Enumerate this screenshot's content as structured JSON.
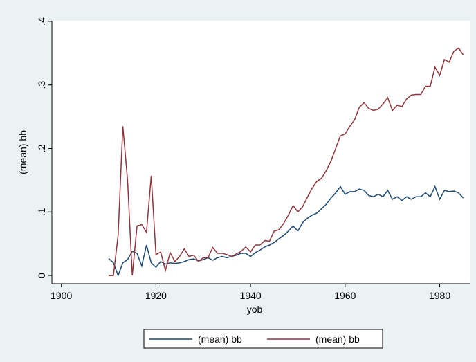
{
  "chart_data": {
    "type": "line",
    "x_label": "yob",
    "y_label": "(mean) bb",
    "x": [
      1910,
      1911,
      1912,
      1913,
      1914,
      1915,
      1916,
      1917,
      1918,
      1919,
      1920,
      1921,
      1922,
      1923,
      1924,
      1925,
      1926,
      1927,
      1928,
      1929,
      1930,
      1931,
      1932,
      1933,
      1934,
      1935,
      1936,
      1937,
      1938,
      1939,
      1940,
      1941,
      1942,
      1943,
      1944,
      1945,
      1946,
      1947,
      1948,
      1949,
      1950,
      1951,
      1952,
      1953,
      1954,
      1955,
      1956,
      1957,
      1958,
      1959,
      1960,
      1961,
      1962,
      1963,
      1964,
      1965,
      1966,
      1967,
      1968,
      1969,
      1970,
      1971,
      1972,
      1973,
      1974,
      1975,
      1976,
      1977,
      1978,
      1979,
      1980,
      1981,
      1982,
      1983,
      1984,
      1985
    ],
    "series": [
      {
        "name": "(mean) bb",
        "color": "#1a476f",
        "values": [
          0.027,
          0.02,
          0,
          0.02,
          0.025,
          0.038,
          0.035,
          0.015,
          0.048,
          0.02,
          0.013,
          0.022,
          0.018,
          0.02,
          0.019,
          0.02,
          0.022,
          0.025,
          0.026,
          0.023,
          0.025,
          0.028,
          0.024,
          0.028,
          0.03,
          0.028,
          0.03,
          0.032,
          0.035,
          0.035,
          0.03,
          0.036,
          0.04,
          0.045,
          0.048,
          0.052,
          0.058,
          0.063,
          0.07,
          0.078,
          0.07,
          0.083,
          0.09,
          0.095,
          0.098,
          0.105,
          0.112,
          0.122,
          0.13,
          0.14,
          0.128,
          0.132,
          0.132,
          0.136,
          0.134,
          0.126,
          0.124,
          0.128,
          0.124,
          0.134,
          0.12,
          0.124,
          0.118,
          0.124,
          0.12,
          0.124,
          0.124,
          0.13,
          0.124,
          0.14,
          0.12,
          0.134,
          0.132,
          0.133,
          0.13,
          0.122
        ]
      },
      {
        "name": "(mean) bb",
        "color": "#90353b",
        "values": [
          0,
          0,
          0.063,
          0.235,
          0.15,
          0,
          0.078,
          0.08,
          0.068,
          0.157,
          0.033,
          0.037,
          0.008,
          0.036,
          0.022,
          0.03,
          0.042,
          0.03,
          0.032,
          0.022,
          0.028,
          0.028,
          0.044,
          0.035,
          0.035,
          0.033,
          0.03,
          0.034,
          0.038,
          0.045,
          0.037,
          0.048,
          0.048,
          0.055,
          0.054,
          0.07,
          0.072,
          0.082,
          0.095,
          0.11,
          0.1,
          0.108,
          0.123,
          0.137,
          0.148,
          0.153,
          0.165,
          0.18,
          0.2,
          0.22,
          0.223,
          0.235,
          0.245,
          0.265,
          0.272,
          0.263,
          0.26,
          0.262,
          0.27,
          0.28,
          0.26,
          0.268,
          0.266,
          0.278,
          0.284,
          0.285,
          0.285,
          0.298,
          0.298,
          0.328,
          0.315,
          0.34,
          0.336,
          0.353,
          0.358,
          0.347
        ]
      }
    ],
    "xlim": [
      1898,
      1986.5
    ],
    "xticks": [
      1900,
      1920,
      1940,
      1960,
      1980
    ],
    "ylim": [
      -0.013,
      0.401
    ],
    "yticks": [
      0,
      {
        "value": 0.1,
        "label": ".1"
      },
      {
        "value": 0.2,
        "label": ".2"
      },
      {
        "value": 0.3,
        "label": ".3"
      },
      {
        "value": 0.4,
        "label": ".4"
      }
    ],
    "legend": "bottom"
  }
}
